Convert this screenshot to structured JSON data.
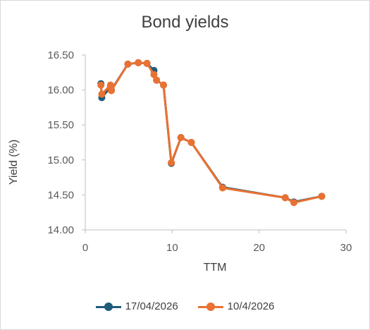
{
  "chart_data": {
    "type": "line",
    "title": "Bond yields",
    "xlabel": "TTM",
    "ylabel": "Yield (%)",
    "xlim": [
      0,
      30
    ],
    "ylim": [
      14.0,
      16.5
    ],
    "xticks": [
      0,
      10,
      20,
      30
    ],
    "yticks": [
      14.0,
      14.5,
      15.0,
      15.5,
      16.0,
      16.5
    ],
    "ytick_labels": [
      "14.00",
      "14.50",
      "15.00",
      "15.50",
      "16.00",
      "16.50"
    ],
    "xtick_labels": [
      "0",
      "10",
      "20",
      "30"
    ],
    "legend_position": "bottom",
    "series": [
      {
        "name": "17/04/2026",
        "color": "#1f5c7a",
        "x": [
          1.8,
          1.9,
          2.9,
          3.0,
          4.9,
          6.1,
          7.1,
          7.9,
          8.2,
          9.0,
          9.9,
          11.0,
          12.2,
          15.8,
          23.0,
          24.0,
          27.2
        ],
        "y": [
          16.09,
          15.89,
          16.04,
          16.0,
          16.37,
          16.39,
          16.38,
          16.28,
          16.14,
          16.07,
          14.95,
          15.32,
          15.25,
          14.61,
          14.46,
          14.4,
          14.48
        ]
      },
      {
        "name": "10/4/2026",
        "color": "#e97132",
        "x": [
          1.8,
          1.9,
          2.9,
          3.0,
          4.9,
          6.1,
          7.1,
          7.9,
          8.2,
          9.0,
          9.9,
          11.0,
          12.2,
          15.8,
          23.0,
          24.0,
          27.2
        ],
        "y": [
          16.07,
          15.94,
          16.07,
          15.99,
          16.37,
          16.39,
          16.38,
          16.22,
          16.14,
          16.07,
          14.96,
          15.32,
          15.25,
          14.6,
          14.46,
          14.39,
          14.48
        ]
      }
    ]
  }
}
